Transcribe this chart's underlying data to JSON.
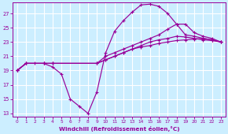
{
  "xlabel": "Windchill (Refroidissement éolien,°C)",
  "xlim": [
    -0.5,
    23.5
  ],
  "ylim": [
    12.5,
    28.5
  ],
  "xticks": [
    0,
    1,
    2,
    3,
    4,
    5,
    6,
    7,
    8,
    9,
    10,
    11,
    12,
    13,
    14,
    15,
    16,
    17,
    18,
    19,
    20,
    21,
    22,
    23
  ],
  "yticks": [
    13,
    15,
    17,
    19,
    21,
    23,
    25,
    27
  ],
  "bg_color": "#cceeff",
  "grid_color": "#ffffff",
  "line_color": "#990099",
  "line1_x": [
    0,
    1,
    2,
    3,
    4,
    5,
    6,
    7,
    8,
    9,
    10,
    11,
    12,
    13,
    14,
    15,
    16,
    17,
    18,
    19,
    20,
    21,
    22,
    23
  ],
  "line1_y": [
    19,
    20,
    20,
    20,
    19.5,
    18.5,
    15,
    14,
    13,
    16,
    21.5,
    24.5,
    26,
    27.2,
    28.2,
    28.3,
    28.0,
    27,
    25.5,
    24,
    23.8,
    23.5,
    23.3,
    23.0
  ],
  "line2_x": [
    0,
    1,
    3,
    4,
    9,
    10,
    11,
    12,
    13,
    14,
    15,
    16,
    17,
    18,
    19,
    20,
    21,
    22,
    23
  ],
  "line2_y": [
    19,
    20,
    20,
    20,
    20,
    21,
    21.5,
    22,
    22.5,
    23,
    23.5,
    24,
    24.8,
    25.5,
    25.5,
    24.3,
    23.8,
    23.5,
    23.0
  ],
  "line3_x": [
    0,
    1,
    3,
    4,
    9,
    10,
    11,
    12,
    13,
    14,
    15,
    16,
    17,
    18,
    19,
    20,
    21,
    22,
    23
  ],
  "line3_y": [
    19,
    20,
    20,
    20,
    20,
    20.5,
    21,
    21.5,
    22,
    22.5,
    23,
    23.3,
    23.5,
    23.8,
    23.7,
    23.5,
    23.3,
    23.2,
    23.0
  ],
  "line4_x": [
    0,
    1,
    3,
    4,
    9,
    10,
    11,
    12,
    13,
    14,
    15,
    16,
    17,
    18,
    19,
    20,
    21,
    22,
    23
  ],
  "line4_y": [
    19,
    20,
    20,
    20,
    20,
    20.5,
    21,
    21.5,
    22,
    22.3,
    22.5,
    22.8,
    23,
    23.2,
    23.3,
    23.4,
    23.5,
    23.3,
    23.0
  ]
}
